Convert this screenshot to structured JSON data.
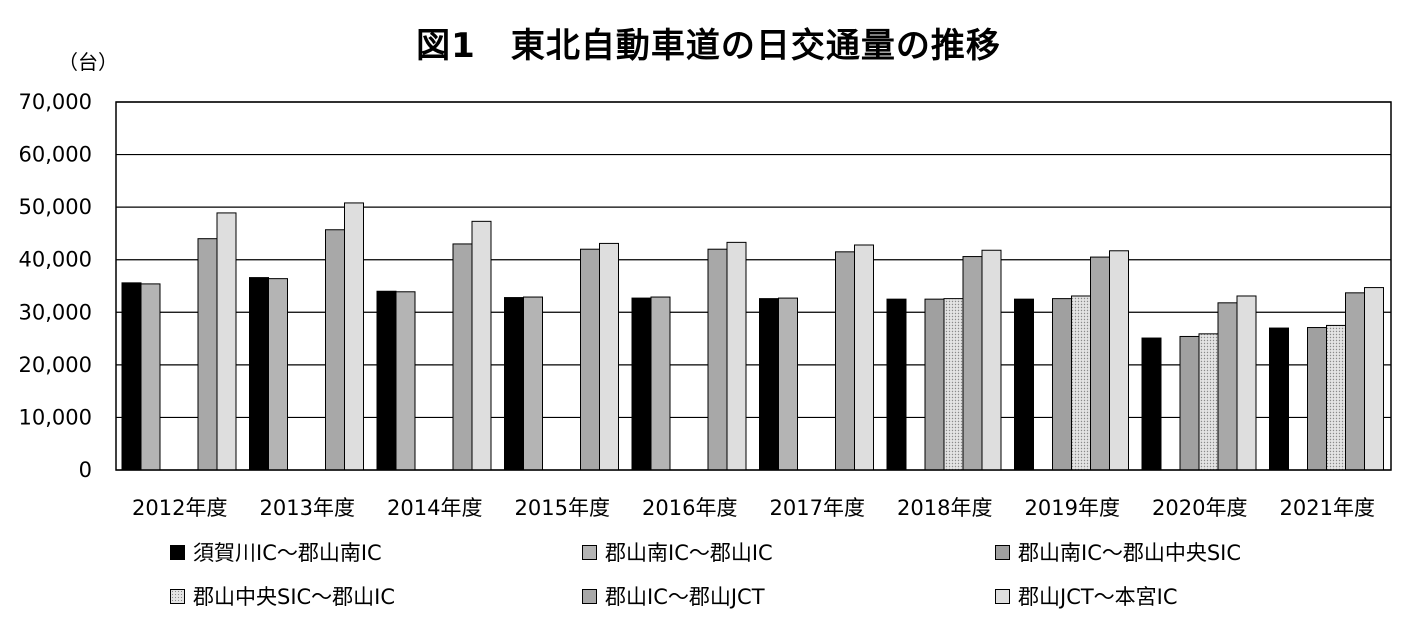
{
  "chart_data": {
    "type": "bar",
    "title": "図1　東北自動車道の日交通量の推移",
    "unit": "（台）",
    "categories": [
      "2012年度",
      "2013年度",
      "2014年度",
      "2015年度",
      "2016年度",
      "2017年度",
      "2018年度",
      "2019年度",
      "2020年度",
      "2021年度"
    ],
    "ylim": [
      0,
      70000
    ],
    "yticks": [
      "0",
      "10,000",
      "20,000",
      "30,000",
      "40,000",
      "50,000",
      "60,000",
      "70,000"
    ],
    "grid": true,
    "legend_position": "bottom",
    "series": [
      {
        "name": "須賀川IC～郡山南IC",
        "color": "#000000",
        "values": [
          35600,
          36600,
          34000,
          32800,
          32700,
          32600,
          32500,
          32500,
          25100,
          27000
        ]
      },
      {
        "name": "郡山南IC～郡山IC",
        "color": "#b4b4b4",
        "values": [
          35400,
          36400,
          33900,
          32900,
          32900,
          32700,
          null,
          null,
          null,
          null
        ]
      },
      {
        "name": "郡山南IC～郡山中央SIC",
        "color": "#a0a0a0",
        "values": [
          null,
          null,
          null,
          null,
          null,
          null,
          32500,
          32600,
          25400,
          27100
        ]
      },
      {
        "name": "郡山中央SIC～郡山IC",
        "color": "#d6d6d6",
        "values": [
          null,
          null,
          null,
          null,
          null,
          null,
          32600,
          33100,
          25900,
          27500
        ]
      },
      {
        "name": "郡山IC～郡山JCT",
        "color": "#a8a8a8",
        "values": [
          44000,
          45700,
          43000,
          42000,
          42000,
          41500,
          40600,
          40500,
          31800,
          33700
        ]
      },
      {
        "name": "郡山JCT～本宮IC",
        "color": "#dedede",
        "values": [
          48900,
          50800,
          47300,
          43100,
          43300,
          42800,
          41800,
          41700,
          33100,
          34700
        ]
      }
    ]
  }
}
